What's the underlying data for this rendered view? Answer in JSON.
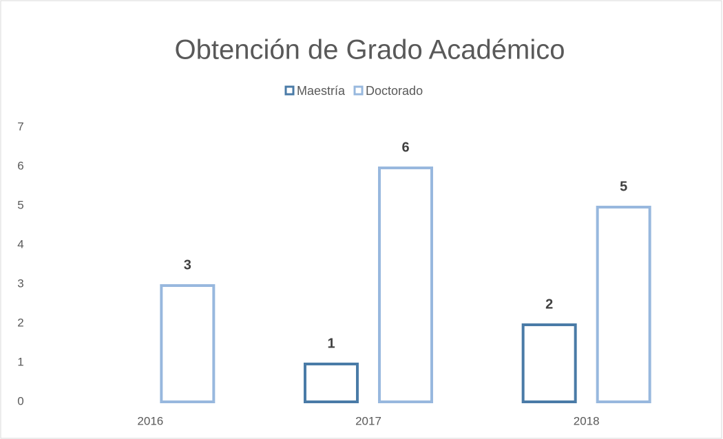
{
  "chart_data": {
    "type": "bar",
    "title": "Obtención de Grado Académico",
    "categories": [
      "2016",
      "2017",
      "2018"
    ],
    "series": [
      {
        "name": "Maestría",
        "color": "#4a7ba7",
        "values": [
          null,
          1,
          2
        ]
      },
      {
        "name": "Doctorado",
        "color": "#98b8de",
        "values": [
          3,
          6,
          5
        ]
      }
    ],
    "ylim": [
      0,
      7
    ],
    "yticks": [
      0,
      1,
      2,
      3,
      4,
      5,
      6,
      7
    ],
    "grid": false,
    "legend": "top"
  }
}
